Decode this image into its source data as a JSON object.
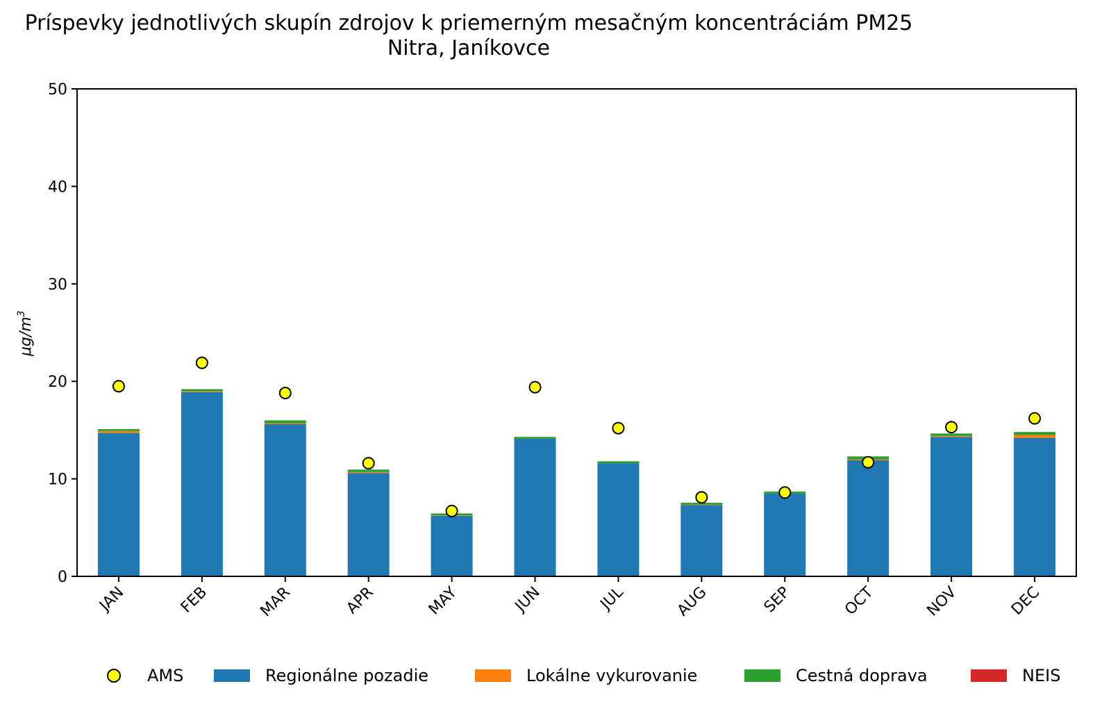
{
  "chart_data": {
    "type": "bar",
    "stacked": true,
    "title": "Príspevky jednotlivých skupín zdrojov k priemerným mesačným koncentráciám PM25",
    "subtitle": "Nitra, Janíkovce",
    "ylabel_base": "μg/m",
    "ylabel_sup": "3",
    "ylim": [
      0,
      50
    ],
    "yticks": [
      0,
      10,
      20,
      30,
      40,
      50
    ],
    "categories": [
      "JAN",
      "FEB",
      "MAR",
      "APR",
      "MAY",
      "JUN",
      "JUL",
      "AUG",
      "SEP",
      "OCT",
      "NOV",
      "DEC"
    ],
    "series": [
      {
        "name": "Regionálne pozadie",
        "color": "#1f77b4",
        "values": [
          14.7,
          18.9,
          15.6,
          10.6,
          6.2,
          14.1,
          11.6,
          7.3,
          8.5,
          11.9,
          14.3,
          14.2
        ]
      },
      {
        "name": "Lokálne vykurovanie",
        "color": "#ff7f0e",
        "values": [
          0.2,
          0.1,
          0.1,
          0.1,
          0.05,
          0.0,
          0.0,
          0.05,
          0.0,
          0.1,
          0.1,
          0.3
        ]
      },
      {
        "name": "Cestná doprava",
        "color": "#2ca02c",
        "values": [
          0.2,
          0.2,
          0.3,
          0.25,
          0.2,
          0.2,
          0.2,
          0.2,
          0.2,
          0.3,
          0.25,
          0.3
        ]
      },
      {
        "name": "NEIS",
        "color": "#d62728",
        "values": [
          0.0,
          0.0,
          0.0,
          0.0,
          0.0,
          0.0,
          0.0,
          0.0,
          0.0,
          0.0,
          0.0,
          0.0
        ]
      }
    ],
    "markers": {
      "name": "AMS",
      "color": "#ffff00",
      "values": [
        19.5,
        21.9,
        18.8,
        11.6,
        6.7,
        19.4,
        15.2,
        8.1,
        8.6,
        11.7,
        15.3,
        16.2
      ]
    },
    "legend_position": "bottom",
    "grid": false
  }
}
